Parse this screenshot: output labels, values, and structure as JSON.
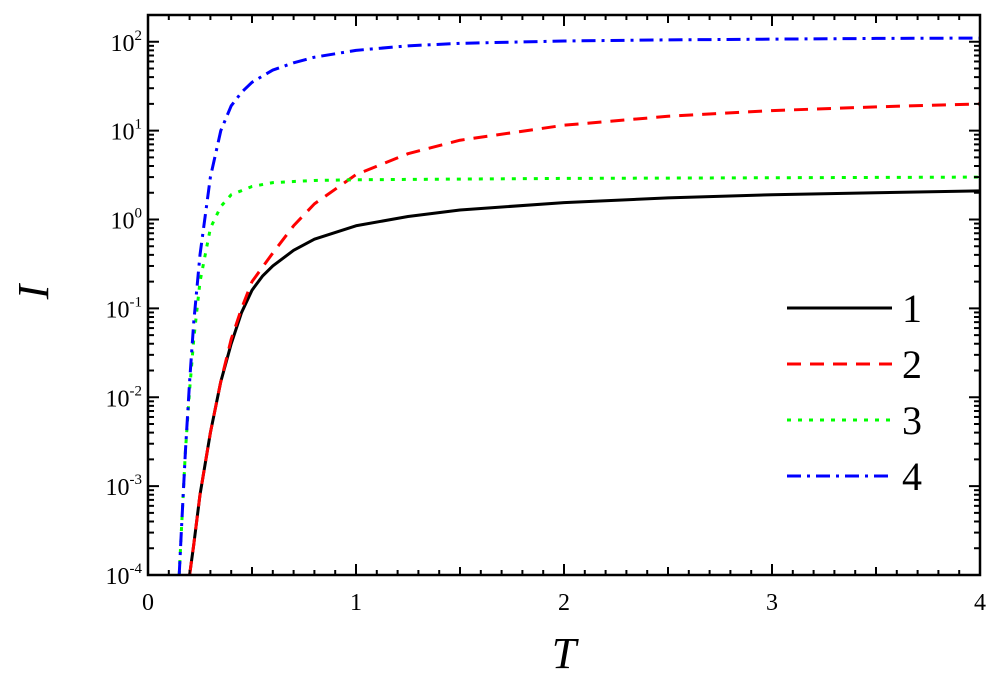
{
  "chart_data": {
    "type": "line",
    "title": "",
    "xlabel": "T",
    "ylabel": "I",
    "xlim": [
      0,
      4
    ],
    "ylim": [
      0.0001,
      200
    ],
    "yscale": "log",
    "x_ticks": [
      "0",
      "1",
      "2",
      "3",
      "4"
    ],
    "y_ticks": [
      {
        "base": "10",
        "exp": "-4"
      },
      {
        "base": "10",
        "exp": "-3"
      },
      {
        "base": "10",
        "exp": "-2"
      },
      {
        "base": "10",
        "exp": "-1"
      },
      {
        "base": "10",
        "exp": "0"
      },
      {
        "base": "10",
        "exp": "1"
      },
      {
        "base": "10",
        "exp": "2"
      }
    ],
    "grid": false,
    "legend_position": "right",
    "series": [
      {
        "name": "1",
        "color": "#000000",
        "dash": "solid",
        "points": [
          [
            0.2,
            0.0001
          ],
          [
            0.22,
            0.00022
          ],
          [
            0.25,
            0.0008
          ],
          [
            0.3,
            0.004
          ],
          [
            0.35,
            0.015
          ],
          [
            0.4,
            0.04
          ],
          [
            0.45,
            0.09
          ],
          [
            0.5,
            0.16
          ],
          [
            0.55,
            0.23
          ],
          [
            0.6,
            0.3
          ],
          [
            0.7,
            0.45
          ],
          [
            0.8,
            0.6
          ],
          [
            1.0,
            0.85
          ],
          [
            1.25,
            1.08
          ],
          [
            1.5,
            1.28
          ],
          [
            2.0,
            1.55
          ],
          [
            2.5,
            1.75
          ],
          [
            3.0,
            1.9
          ],
          [
            3.5,
            2.0
          ],
          [
            4.0,
            2.1
          ]
        ]
      },
      {
        "name": "2",
        "color": "#ff0000",
        "dash": "dashed",
        "points": [
          [
            0.2,
            0.0001
          ],
          [
            0.22,
            0.00022
          ],
          [
            0.25,
            0.0008
          ],
          [
            0.3,
            0.004
          ],
          [
            0.35,
            0.015
          ],
          [
            0.4,
            0.045
          ],
          [
            0.45,
            0.1
          ],
          [
            0.5,
            0.2
          ],
          [
            0.6,
            0.42
          ],
          [
            0.7,
            0.85
          ],
          [
            0.8,
            1.5
          ],
          [
            1.0,
            3.2
          ],
          [
            1.25,
            5.5
          ],
          [
            1.5,
            7.8
          ],
          [
            2.0,
            11.5
          ],
          [
            2.5,
            14.5
          ],
          [
            3.0,
            16.8
          ],
          [
            3.5,
            18.5
          ],
          [
            4.0,
            20
          ]
        ]
      },
      {
        "name": "3",
        "color": "#00ff00",
        "dash": "dotted",
        "points": [
          [
            0.15,
            0.0001
          ],
          [
            0.16,
            0.0003
          ],
          [
            0.18,
            0.0025
          ],
          [
            0.2,
            0.012
          ],
          [
            0.22,
            0.045
          ],
          [
            0.25,
            0.2
          ],
          [
            0.3,
            0.8
          ],
          [
            0.35,
            1.4
          ],
          [
            0.4,
            1.9
          ],
          [
            0.5,
            2.35
          ],
          [
            0.6,
            2.6
          ],
          [
            0.8,
            2.75
          ],
          [
            1.0,
            2.8
          ],
          [
            1.5,
            2.85
          ],
          [
            2.0,
            2.9
          ],
          [
            3.0,
            2.95
          ],
          [
            4.0,
            3.0
          ]
        ]
      },
      {
        "name": "4",
        "color": "#0000ff",
        "dash": "dashdot",
        "points": [
          [
            0.15,
            0.0001
          ],
          [
            0.16,
            0.0003
          ],
          [
            0.18,
            0.0025
          ],
          [
            0.2,
            0.015
          ],
          [
            0.22,
            0.07
          ],
          [
            0.25,
            0.4
          ],
          [
            0.3,
            3.0
          ],
          [
            0.35,
            10
          ],
          [
            0.4,
            19
          ],
          [
            0.45,
            27
          ],
          [
            0.5,
            35
          ],
          [
            0.6,
            48
          ],
          [
            0.7,
            58
          ],
          [
            0.8,
            67
          ],
          [
            1.0,
            80
          ],
          [
            1.25,
            90
          ],
          [
            1.5,
            96
          ],
          [
            2.0,
            102
          ],
          [
            2.5,
            105
          ],
          [
            3.0,
            107
          ],
          [
            3.5,
            109
          ],
          [
            4.0,
            110
          ]
        ]
      }
    ]
  }
}
